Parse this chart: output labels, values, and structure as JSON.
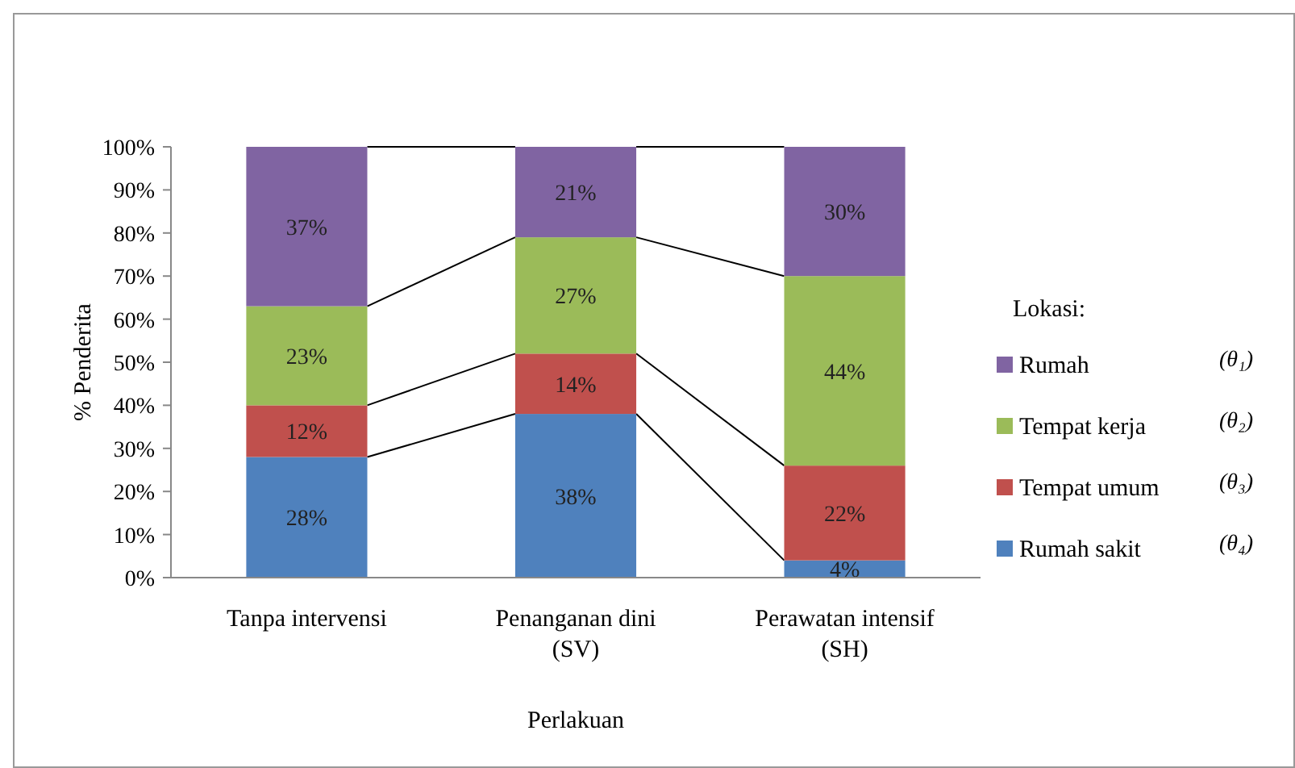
{
  "chart_data": {
    "type": "bar",
    "stacked": true,
    "xlabel": "Perlakuan",
    "ylabel": "% Penderita",
    "legend_title": "Lokasi:",
    "legend": "right",
    "categories": [
      "Tanpa intervensi",
      "Penanganan dini\n(SV)",
      "Perawatan intensif\n(SH)"
    ],
    "series": [
      {
        "name": "Rumah sakit",
        "color": "#4f81bd",
        "values": [
          28,
          38,
          4
        ],
        "value_labels": [
          "28%",
          "38%",
          "4%"
        ]
      },
      {
        "name": "Tempat umum",
        "color": "#c0504d",
        "values": [
          12,
          14,
          22
        ],
        "value_labels": [
          "12%",
          "14%",
          "22%"
        ]
      },
      {
        "name": "Tempat kerja",
        "color": "#9bbb59",
        "values": [
          23,
          27,
          44
        ],
        "value_labels": [
          "23%",
          "27%",
          "44%"
        ]
      },
      {
        "name": "Rumah",
        "color": "#8064a2",
        "values": [
          37,
          21,
          30
        ],
        "value_labels": [
          "37%",
          "21%",
          "30%"
        ]
      }
    ],
    "ylim": [
      0,
      100
    ],
    "yticks": [
      {
        "value": 0,
        "label": "0%"
      },
      {
        "value": 10,
        "label": "10%"
      },
      {
        "value": 20,
        "label": "20%"
      },
      {
        "value": 30,
        "label": "30%"
      },
      {
        "value": 40,
        "label": "40%"
      },
      {
        "value": 50,
        "label": "50%"
      },
      {
        "value": 60,
        "label": "60%"
      },
      {
        "value": 70,
        "label": "70%"
      },
      {
        "value": 80,
        "label": "80%"
      },
      {
        "value": 90,
        "label": "90%"
      },
      {
        "value": 100,
        "label": "100%"
      }
    ],
    "annotations": [
      "(θ₁)",
      "(θ₂)",
      "(θ₃)",
      "(θ₄)"
    ]
  }
}
